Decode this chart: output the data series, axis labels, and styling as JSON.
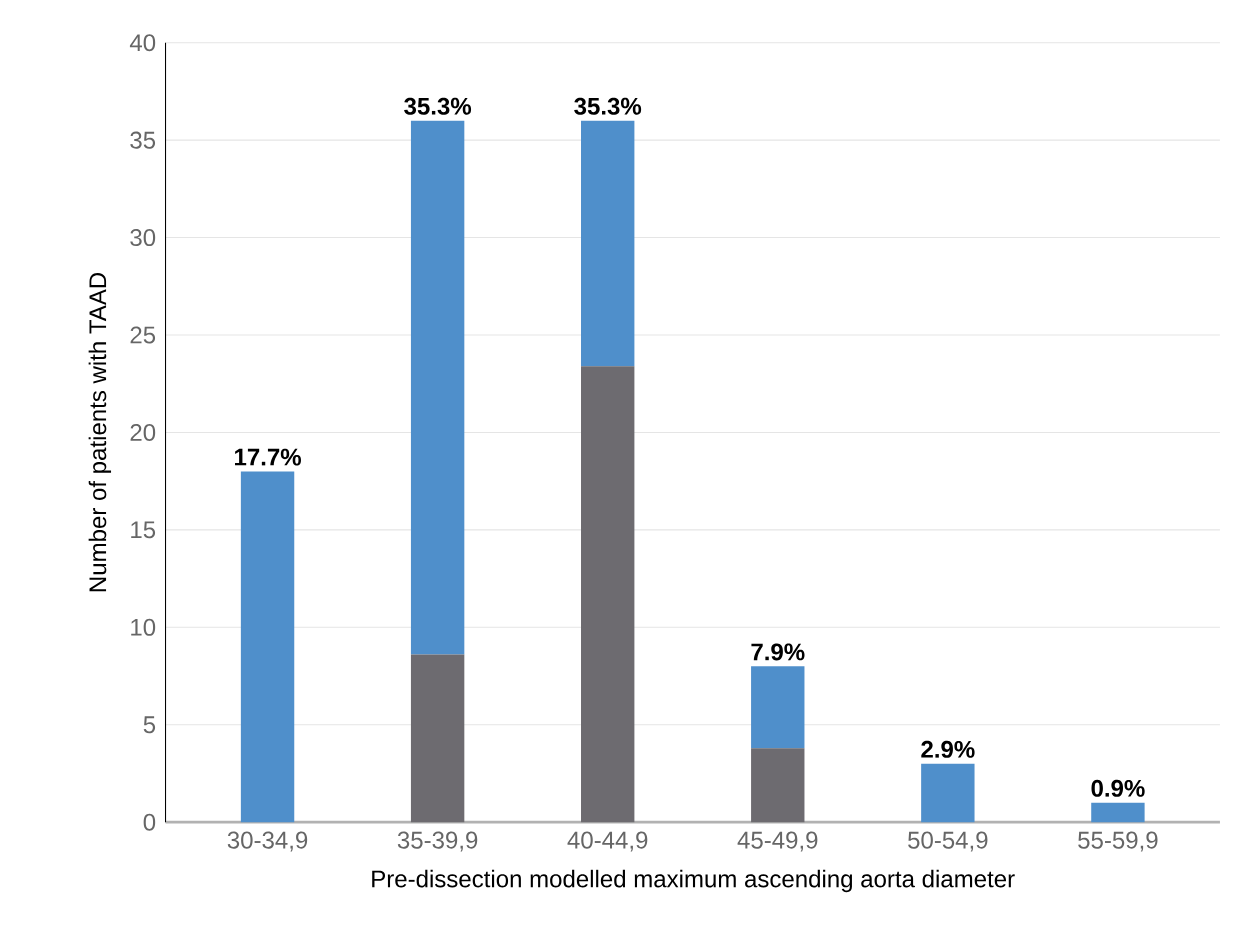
{
  "chart_data": {
    "type": "bar",
    "stacked": true,
    "xlabel": "Pre-dissection modelled maximum ascending aorta diameter",
    "ylabel": "Number of patients with TAAD",
    "categories": [
      "30-34,9",
      "35-39,9",
      "40-44,9",
      "45-49,9",
      "50-54,9",
      "55-59,9"
    ],
    "series": [
      {
        "color": "#6d6b70",
        "values": [
          0,
          8.6,
          23.4,
          3.8,
          0,
          0
        ]
      },
      {
        "color": "#4f8fcb",
        "values": [
          18,
          27.4,
          12.6,
          4.2,
          3,
          1
        ]
      }
    ],
    "ylim": [
      0,
      40
    ],
    "yticks": [
      0,
      5,
      10,
      15,
      20,
      25,
      30,
      35,
      40
    ],
    "grid": "y",
    "annotations": [
      {
        "text": "17.7%",
        "x": "30-34,9",
        "y": 18
      },
      {
        "text": "35.3%",
        "x": "35-39,9",
        "y": 36
      },
      {
        "text": "35.3%",
        "x": "40-44,9",
        "y": 36
      },
      {
        "text": "7.9%",
        "x": "45-49,9",
        "y": 8
      },
      {
        "text": "2.9%",
        "x": "50-54,9",
        "y": 3
      },
      {
        "text": "0.9%",
        "x": "55-59,9",
        "y": 1
      }
    ]
  }
}
